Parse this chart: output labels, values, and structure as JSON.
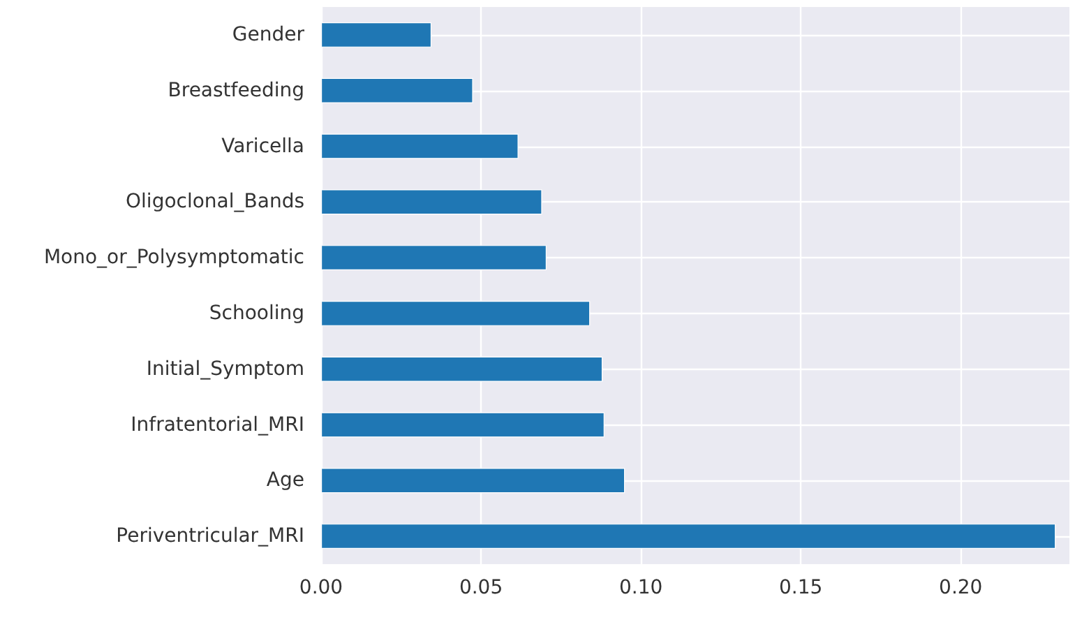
{
  "chart_data": {
    "type": "bar",
    "orientation": "horizontal",
    "categories": [
      "Gender",
      "Breastfeeding",
      "Varicella",
      "Oligoclonal_Bands",
      "Mono_or_Polysymptomatic",
      "Schooling",
      "Initial_Symptom",
      "Infratentorial_MRI",
      "Age",
      "Periventricular_MRI"
    ],
    "values": [
      0.0345,
      0.0475,
      0.0617,
      0.0691,
      0.0705,
      0.0841,
      0.088,
      0.0886,
      0.095,
      0.2297
    ],
    "color": "#1f77b4",
    "xlim": [
      0,
      0.234
    ],
    "xticks": [
      {
        "value": 0,
        "label": "0.00"
      },
      {
        "value": 0.05,
        "label": "0.05"
      },
      {
        "value": 0.1,
        "label": "0.10"
      },
      {
        "value": 0.15,
        "label": "0.15"
      },
      {
        "value": 0.2,
        "label": "0.20"
      }
    ],
    "grid": true
  }
}
